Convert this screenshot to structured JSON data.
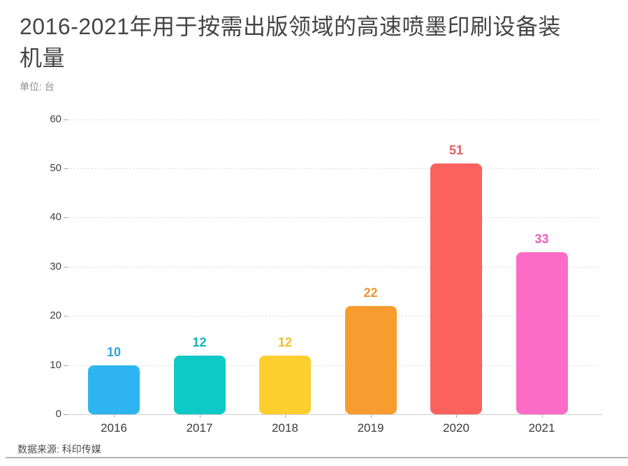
{
  "chart_data": {
    "type": "bar",
    "title": "2016-2021年用于按需出版领域的高速喷墨印刷设备装机量",
    "unit_label": "单位: 台",
    "source": "数据来源: 科印传媒",
    "categories": [
      "2016",
      "2017",
      "2018",
      "2019",
      "2020",
      "2021"
    ],
    "values": [
      10,
      12,
      12,
      22,
      51,
      33
    ],
    "bar_colors": [
      "#2EB4EE",
      "#0FC9C6",
      "#FCCF2E",
      "#F99C30",
      "#FB625E",
      "#FA6CC6"
    ],
    "value_label_colors": [
      "#2EA3D8",
      "#10B4B4",
      "#F2BD2D",
      "#EF9433",
      "#E85B5B",
      "#E95FBC"
    ],
    "yticks": [
      0,
      10,
      20,
      30,
      40,
      50,
      60
    ],
    "ylim": [
      0,
      60
    ],
    "xlabel": "",
    "ylabel": "",
    "legend": "none",
    "grid": "horizontal-dashed"
  }
}
